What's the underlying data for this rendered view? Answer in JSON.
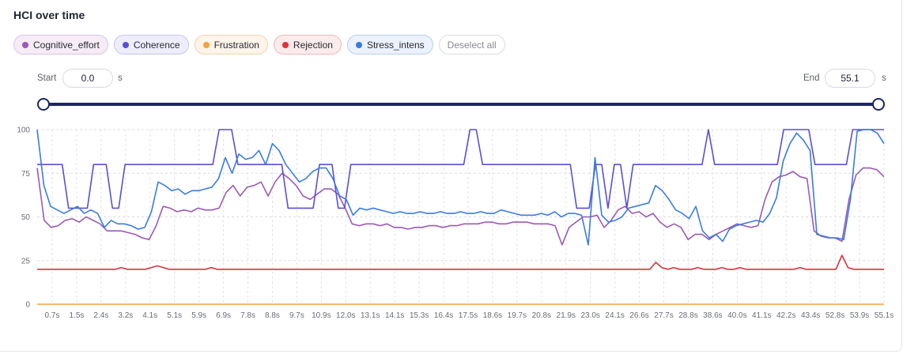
{
  "title": "HCI over time",
  "legend": [
    {
      "label": "Cognitive_effort",
      "color": "#9b59b6",
      "bg": "#f5ecf8",
      "border": "#d9c2e6"
    },
    {
      "label": "Coherence",
      "color": "#5a4fd6",
      "bg": "#eeedfb",
      "border": "#c8c4ee"
    },
    {
      "label": "Frustration",
      "color": "#f5a142",
      "bg": "#fdf4ea",
      "border": "#f1d4b0"
    },
    {
      "label": "Rejection",
      "color": "#e0323a",
      "bg": "#fcebec",
      "border": "#eeb8bb"
    },
    {
      "label": "Stress_intens",
      "color": "#3a7be0",
      "bg": "#ebf2fc",
      "border": "#b9cff0"
    }
  ],
  "deselect_label": "Deselect all",
  "range": {
    "start_label": "Start",
    "start_value": "0.0",
    "end_label": "End",
    "end_value": "55.1",
    "unit": "s"
  },
  "chart_data": {
    "type": "line",
    "title": "HCI over time",
    "ylim": [
      0,
      100
    ],
    "yticks": [
      0,
      25,
      50,
      75,
      100
    ],
    "grid": true,
    "x_tick_labels": [
      "0.7s",
      "1.5s",
      "2.4s",
      "3.2s",
      "4.1s",
      "5.1s",
      "5.9s",
      "6.9s",
      "7.8s",
      "8.8s",
      "9.7s",
      "10.9s",
      "12.0s",
      "13.1s",
      "14.1s",
      "15.3s",
      "16.4s",
      "17.5s",
      "18.6s",
      "19.7s",
      "20.8s",
      "21.9s",
      "23.0s",
      "24.1s",
      "26.6s",
      "27.7s",
      "28.8s",
      "38.6s",
      "40.0s",
      "41.1s",
      "42.2s",
      "43.4s",
      "52.8s",
      "53.9s",
      "55.1s"
    ],
    "series": [
      {
        "name": "Cognitive_effort",
        "color": "#9b59b6",
        "values": [
          78,
          48,
          44,
          45,
          48,
          49,
          47,
          50,
          48,
          46,
          42,
          42,
          42,
          41,
          40,
          38,
          37,
          45,
          56,
          55,
          53,
          54,
          53,
          55,
          54,
          54,
          55,
          64,
          68,
          62,
          67,
          68,
          70,
          62,
          70,
          75,
          72,
          68,
          62,
          60,
          63,
          66,
          66,
          63,
          55,
          46,
          45,
          46,
          46,
          45,
          46,
          44,
          44,
          43,
          44,
          44,
          45,
          45,
          44,
          45,
          45,
          46,
          46,
          46,
          47,
          47,
          46,
          46,
          47,
          47,
          47,
          46,
          46,
          46,
          45,
          34,
          44,
          47,
          50,
          50,
          51,
          44,
          48,
          54,
          56,
          52,
          53,
          50,
          52,
          47,
          44,
          46,
          44,
          37,
          40,
          40,
          37,
          40,
          42,
          44,
          46,
          45,
          44,
          45,
          60,
          70,
          73,
          74,
          76,
          73,
          72,
          42,
          39,
          38,
          38,
          36,
          60,
          74,
          78,
          78,
          77,
          73
        ]
      },
      {
        "name": "Coherence",
        "color": "#5a4fd6",
        "values": [
          80,
          80,
          80,
          80,
          80,
          55,
          55,
          55,
          55,
          80,
          80,
          80,
          55,
          55,
          80,
          80,
          80,
          80,
          80,
          80,
          80,
          80,
          80,
          80,
          80,
          80,
          80,
          80,
          80,
          100,
          100,
          100,
          80,
          80,
          80,
          80,
          80,
          80,
          80,
          80,
          55,
          55,
          55,
          55,
          55,
          80,
          80,
          80,
          55,
          55,
          80,
          80,
          80,
          80,
          80,
          80,
          80,
          80,
          80,
          80,
          80,
          80,
          80,
          80,
          80,
          80,
          80,
          80,
          80,
          100,
          100,
          80,
          80,
          80,
          80,
          80,
          80,
          80,
          80,
          80,
          80,
          80,
          80,
          80,
          80,
          80,
          55,
          55,
          55,
          80,
          80,
          55,
          80,
          80,
          55,
          80,
          80,
          80,
          80,
          80,
          80,
          80,
          80,
          80,
          80,
          80,
          80,
          100,
          80,
          80,
          80,
          80,
          80,
          80,
          80,
          80,
          80,
          80,
          80,
          100,
          100,
          100,
          100,
          100,
          80,
          80,
          80,
          80,
          80,
          80,
          100,
          100,
          100,
          100,
          100,
          100
        ]
      },
      {
        "name": "Frustration",
        "color": "#f5a142",
        "values": [
          0,
          0,
          0,
          0,
          0,
          0,
          0,
          0,
          0,
          0,
          0,
          0,
          0,
          0,
          0,
          0,
          0,
          0,
          0,
          0,
          0,
          0,
          0,
          0,
          0,
          0,
          0,
          0,
          0,
          0,
          0,
          0,
          0,
          0,
          0,
          0,
          0,
          0,
          0,
          0,
          0,
          0,
          0,
          0,
          0,
          0,
          0,
          0,
          0,
          0,
          0,
          0,
          0,
          0,
          0,
          0,
          0,
          0,
          0,
          0,
          0,
          0,
          0,
          0,
          0,
          0,
          0,
          0,
          0,
          0,
          0,
          0,
          0,
          0,
          0,
          0,
          0,
          0,
          0,
          0,
          0,
          0,
          0,
          0,
          0,
          0,
          0,
          0,
          0,
          0,
          0,
          0,
          0,
          0,
          0,
          0,
          0,
          0,
          0,
          0,
          0,
          0,
          0,
          0,
          0,
          0,
          0,
          0,
          0,
          0,
          0,
          0,
          0,
          0,
          0,
          0,
          0,
          0,
          0,
          0
        ]
      },
      {
        "name": "Rejection",
        "color": "#e0323a",
        "values": [
          20,
          20,
          20,
          20,
          20,
          20,
          20,
          20,
          20,
          20,
          20,
          20,
          20,
          20,
          21,
          20,
          20,
          20,
          20,
          21,
          22,
          21,
          20,
          20,
          20,
          20,
          20,
          20,
          20,
          21,
          20,
          20,
          20,
          20,
          20,
          20,
          20,
          20,
          20,
          20,
          20,
          20,
          20,
          20,
          20,
          20,
          20,
          20,
          20,
          20,
          20,
          20,
          20,
          20,
          20,
          20,
          20,
          20,
          20,
          20,
          20,
          20,
          20,
          20,
          20,
          20,
          20,
          20,
          20,
          20,
          20,
          20,
          20,
          20,
          20,
          20,
          20,
          20,
          20,
          20,
          20,
          20,
          20,
          20,
          20,
          20,
          20,
          20,
          20,
          20,
          20,
          20,
          20,
          20,
          20,
          20,
          20,
          20,
          20,
          20,
          20,
          20,
          20,
          24,
          21,
          20,
          21,
          20,
          20,
          20,
          21,
          20,
          20,
          20,
          21,
          20,
          20,
          21,
          20,
          20,
          20,
          20,
          20,
          20,
          20,
          20,
          20,
          21,
          20,
          20,
          20,
          20,
          20,
          20,
          28,
          21,
          20,
          20,
          20,
          20,
          20,
          20
        ]
      },
      {
        "name": "Stress_intens",
        "color": "#3a7be0",
        "values": [
          100,
          68,
          56,
          54,
          52,
          54,
          56,
          52,
          54,
          52,
          44,
          48,
          46,
          46,
          45,
          43,
          44,
          53,
          70,
          68,
          65,
          66,
          63,
          65,
          65,
          66,
          67,
          72,
          84,
          75,
          86,
          83,
          84,
          88,
          80,
          92,
          88,
          80,
          75,
          70,
          72,
          76,
          78,
          78,
          72,
          62,
          60,
          51,
          55,
          54,
          55,
          54,
          53,
          52,
          53,
          52,
          52,
          53,
          52,
          52,
          53,
          52,
          52,
          53,
          52,
          52,
          53,
          52,
          52,
          54,
          53,
          52,
          51,
          51,
          51,
          52,
          51,
          53,
          50,
          52,
          52,
          51,
          34,
          84,
          51,
          47,
          48,
          50,
          55,
          56,
          57,
          58,
          68,
          65,
          60,
          54,
          52,
          49,
          56,
          42,
          38,
          40,
          36,
          43,
          45,
          46,
          47,
          48,
          47,
          52,
          61,
          82,
          92,
          98,
          94,
          88,
          40,
          39,
          38,
          38,
          37,
          60,
          99,
          100,
          100,
          98,
          92
        ]
      }
    ]
  }
}
